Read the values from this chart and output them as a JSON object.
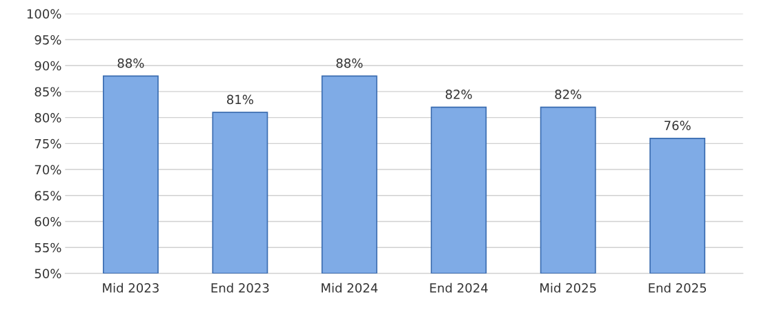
{
  "chart_data": {
    "type": "bar",
    "categories": [
      "Mid 2023",
      "End 2023",
      "Mid 2024",
      "End 2024",
      "Mid 2025",
      "End 2025"
    ],
    "values": [
      88,
      81,
      88,
      82,
      82,
      76
    ],
    "value_labels": [
      "88%",
      "81%",
      "88%",
      "82%",
      "82%",
      "76%"
    ],
    "color": "#7fabe6",
    "ylim": [
      50,
      100
    ],
    "yticks": [
      {
        "value": 50,
        "label": "50%"
      },
      {
        "value": 55,
        "label": "55%"
      },
      {
        "value": 60,
        "label": "60%"
      },
      {
        "value": 65,
        "label": "65%"
      },
      {
        "value": 70,
        "label": "70%"
      },
      {
        "value": 75,
        "label": "75%"
      },
      {
        "value": 80,
        "label": "80%"
      },
      {
        "value": 85,
        "label": "85%"
      },
      {
        "value": 90,
        "label": "90%"
      },
      {
        "value": 95,
        "label": "95%"
      },
      {
        "value": 100,
        "label": "100%"
      }
    ],
    "grid": "y",
    "legend": false
  }
}
